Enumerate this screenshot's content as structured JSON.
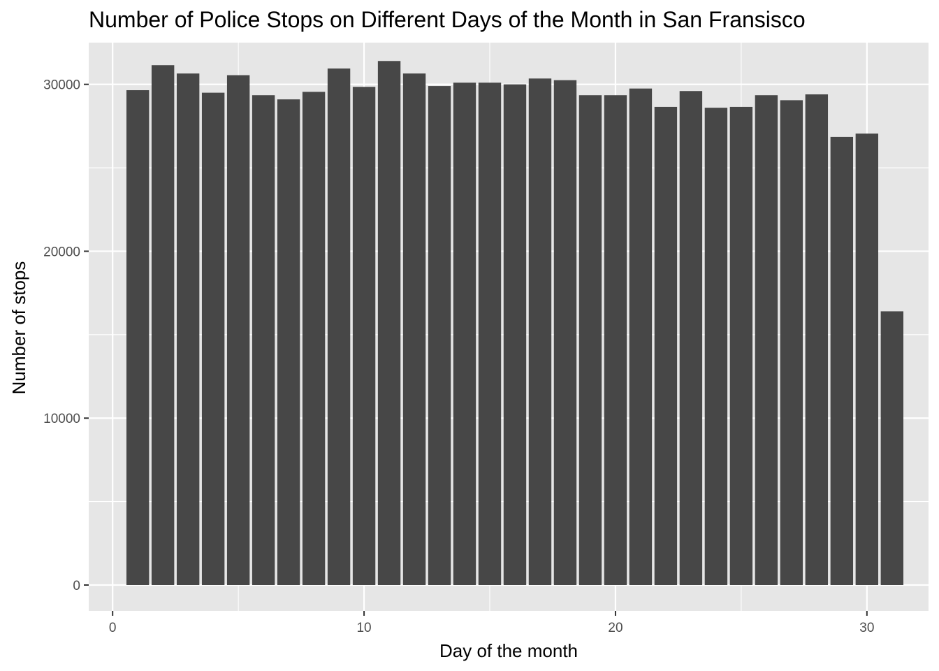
{
  "chart_data": {
    "type": "bar",
    "title": "Number of Police Stops on Different Days of the Month in San Fransisco",
    "xlabel": "Day of the month",
    "ylabel": "Number of stops",
    "x": [
      1,
      2,
      3,
      4,
      5,
      6,
      7,
      8,
      9,
      10,
      11,
      12,
      13,
      14,
      15,
      16,
      17,
      18,
      19,
      20,
      21,
      22,
      23,
      24,
      25,
      26,
      27,
      28,
      29,
      30,
      31
    ],
    "values": [
      29650,
      31150,
      30650,
      29500,
      30550,
      29350,
      29100,
      29550,
      30950,
      29850,
      31400,
      30650,
      29900,
      30100,
      30100,
      30000,
      30350,
      30250,
      29350,
      29350,
      29750,
      28650,
      29600,
      28600,
      28650,
      29350,
      29050,
      29400,
      26850,
      27050,
      16400
    ],
    "xlim": [
      -0.95,
      32.45
    ],
    "ylim": [
      -1550,
      32500
    ],
    "xticks": [
      0,
      10,
      20,
      30
    ],
    "xtick_labels": [
      "0",
      "10",
      "20",
      "30"
    ],
    "yticks": [
      0,
      10000,
      20000,
      30000
    ],
    "ytick_labels": [
      "0",
      "10000",
      "20000",
      "30000"
    ],
    "grid": true,
    "legend": "none",
    "colors": {
      "bar": "#474747",
      "panel": "#e6e6e6",
      "grid": "#ffffff",
      "tick": "#333333"
    }
  }
}
